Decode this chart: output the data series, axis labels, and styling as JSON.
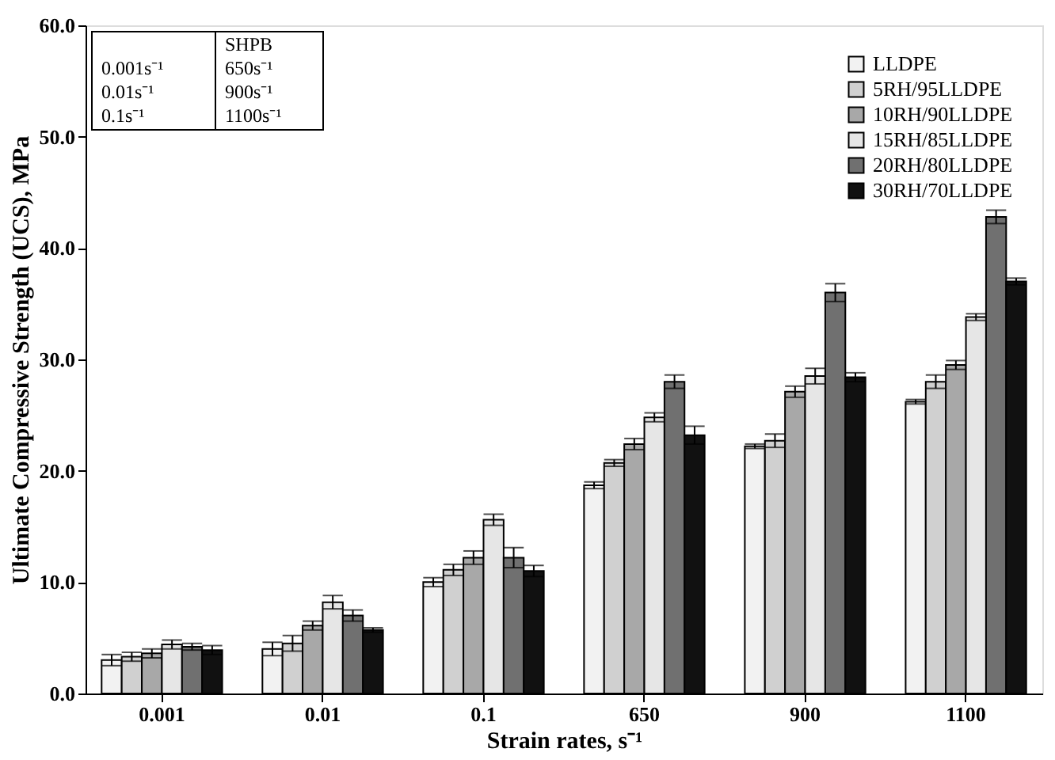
{
  "chart_data": {
    "type": "bar",
    "xlabel": "Strain rates, s⁻¹",
    "ylabel": "Ultimate Compressive Strength (UCS), MPa",
    "categories": [
      "0.001",
      "0.01",
      "0.1",
      "650",
      "900",
      "1100"
    ],
    "series": [
      {
        "name": "LLDPE",
        "color": "#f2f2f2",
        "values": [
          3.0,
          4.0,
          10.0,
          18.7,
          22.2,
          26.2
        ],
        "errors": [
          0.5,
          0.6,
          0.4,
          0.3,
          0.2,
          0.2
        ]
      },
      {
        "name": "5RH/95LLDPE",
        "color": "#d0d0d0",
        "values": [
          3.3,
          4.5,
          11.1,
          20.7,
          22.7,
          28.0
        ],
        "errors": [
          0.4,
          0.7,
          0.5,
          0.3,
          0.6,
          0.6
        ]
      },
      {
        "name": "10RH/90LLDPE",
        "color": "#a8a8a8",
        "values": [
          3.6,
          6.1,
          12.2,
          22.4,
          27.1,
          29.5
        ],
        "errors": [
          0.4,
          0.4,
          0.6,
          0.5,
          0.5,
          0.4
        ]
      },
      {
        "name": "15RH/85LLDPE",
        "color": "#e6e6e6",
        "values": [
          4.4,
          8.2,
          15.6,
          24.8,
          28.5,
          33.8
        ],
        "errors": [
          0.4,
          0.6,
          0.5,
          0.4,
          0.7,
          0.3
        ]
      },
      {
        "name": "20RH/80LLDPE",
        "color": "#707070",
        "values": [
          4.2,
          7.0,
          12.2,
          28.0,
          36.0,
          42.8
        ],
        "errors": [
          0.3,
          0.5,
          0.9,
          0.6,
          0.8,
          0.6
        ]
      },
      {
        "name": "30RH/70LLDPE",
        "color": "#111111",
        "values": [
          3.9,
          5.7,
          11.0,
          23.2,
          28.4,
          37.0
        ],
        "errors": [
          0.4,
          0.2,
          0.5,
          0.8,
          0.4,
          0.3
        ]
      }
    ],
    "ylim": [
      0,
      60
    ],
    "yticks": [
      {
        "value": 0,
        "label": "0.0"
      },
      {
        "value": 10,
        "label": "10.0"
      },
      {
        "value": 20,
        "label": "20.0"
      },
      {
        "value": 30,
        "label": "30.0"
      },
      {
        "value": 40,
        "label": "40.0"
      },
      {
        "value": 50,
        "label": "50.0"
      },
      {
        "value": 60,
        "label": "60.0"
      }
    ],
    "grid": false,
    "legend": "top right",
    "annotations": [
      "0.001s⁻¹",
      "0.01s⁻¹",
      "0.1s⁻¹",
      "SHPB",
      "650s⁻¹",
      "900s⁻¹",
      "1100s⁻¹"
    ]
  }
}
